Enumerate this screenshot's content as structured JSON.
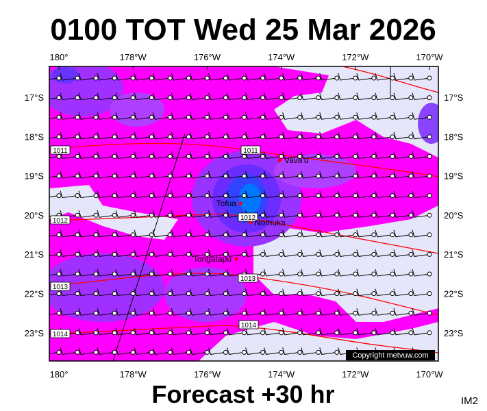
{
  "header": {
    "title": "0100 TOT Wed 25 Mar 2026"
  },
  "footer": {
    "caption": "Forecast +30 hr",
    "code": "IM2"
  },
  "map": {
    "longitude_labels": [
      "180°",
      "178°W",
      "176°W",
      "174°W",
      "172°W",
      "170°W"
    ],
    "latitude_labels": [
      "17°S",
      "18°S",
      "19°S",
      "20°S",
      "21°S",
      "22°S",
      "23°S"
    ],
    "isobar_labels": [
      "1011",
      "1011",
      "1012",
      "1012",
      "1013",
      "1013",
      "1014",
      "1014"
    ],
    "places": [
      "Vava'u",
      "Tofua",
      "Nomuka",
      "Tongatapu"
    ],
    "copyright": "Copyright metvuw.com"
  }
}
